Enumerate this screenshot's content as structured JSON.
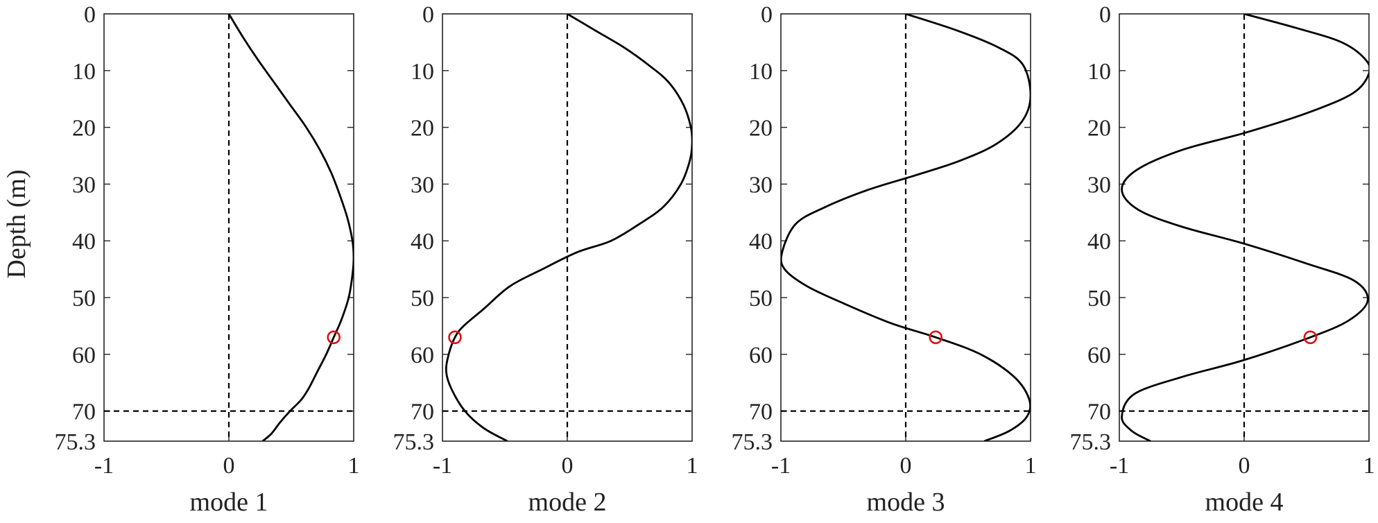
{
  "figure": {
    "ylabel": "Depth (m)",
    "colors": {
      "curve": "#000000",
      "axes": "#222222",
      "marker": "#e01010"
    }
  },
  "chart_data": [
    {
      "type": "line",
      "xlabel": "mode 1",
      "ylabel": "Depth (m)",
      "xlim": [
        -1,
        1
      ],
      "ylim": [
        0,
        75.3
      ],
      "y_reversed": true,
      "x_ticks": [
        "-1",
        "0",
        "1"
      ],
      "y_ticks": [
        "0",
        "10",
        "20",
        "30",
        "40",
        "50",
        "60",
        "70",
        "75.3"
      ],
      "reference_lines": {
        "vertical_dashed_x": 0,
        "horizontal_dashed_y": 70
      },
      "series": [
        {
          "x": [
            0,
            0.11,
            0.23,
            0.36,
            0.49,
            0.62,
            0.73,
            0.82,
            0.89,
            0.95,
            0.99,
            1.0,
            0.99,
            0.96,
            0.9,
            0.84,
            0.78,
            0.71,
            0.64,
            0.58,
            0.49,
            0.41,
            0.34,
            0.27
          ],
          "y": [
            0,
            4,
            8,
            12,
            16,
            20,
            24,
            28,
            32,
            36,
            40,
            43,
            46,
            50,
            54,
            57,
            60,
            63,
            66,
            68,
            70,
            72,
            74,
            75.3
          ]
        }
      ],
      "marker": {
        "x": 0.84,
        "y": 57,
        "shape": "open-circle"
      }
    },
    {
      "type": "line",
      "xlabel": "mode 2",
      "xlim": [
        -1,
        1
      ],
      "ylim": [
        0,
        75.3
      ],
      "y_reversed": true,
      "x_ticks": [
        "-1",
        "0",
        "1"
      ],
      "y_ticks": [
        "0",
        "10",
        "20",
        "30",
        "40",
        "50",
        "60",
        "70",
        "75.3"
      ],
      "reference_lines": {
        "vertical_dashed_x": 0,
        "horizontal_dashed_y": 70
      },
      "series": [
        {
          "x": [
            0,
            0.23,
            0.46,
            0.65,
            0.81,
            0.93,
            0.99,
            1.0,
            0.98,
            0.91,
            0.77,
            0.58,
            0.35,
            0.08,
            -0.2,
            -0.46,
            -0.67,
            -0.83,
            -0.9,
            -0.95,
            -0.97,
            -0.93,
            -0.82,
            -0.67,
            -0.48
          ],
          "y": [
            0,
            3,
            6,
            9,
            12,
            16,
            20,
            23,
            26,
            30,
            34,
            37,
            40,
            42,
            45,
            48,
            52,
            55,
            57,
            60,
            63,
            66,
            70,
            73,
            75.3
          ]
        }
      ],
      "marker": {
        "x": -0.9,
        "y": 57,
        "shape": "open-circle"
      }
    },
    {
      "type": "line",
      "xlabel": "mode 3",
      "xlim": [
        -1,
        1
      ],
      "ylim": [
        0,
        75.3
      ],
      "y_reversed": true,
      "x_ticks": [
        "-1",
        "0",
        "1"
      ],
      "y_ticks": [
        "0",
        "10",
        "20",
        "30",
        "40",
        "50",
        "60",
        "70",
        "75.3"
      ],
      "reference_lines": {
        "vertical_dashed_x": 0,
        "horizontal_dashed_y": 70
      },
      "series": [
        {
          "x": [
            0,
            0.42,
            0.75,
            0.94,
            1.0,
            0.93,
            0.72,
            0.42,
            0.07,
            -0.3,
            -0.64,
            -0.88,
            -0.99,
            -0.97,
            -0.79,
            -0.5,
            -0.12,
            0.24,
            0.6,
            0.87,
            0.99,
            0.97,
            0.83,
            0.63
          ],
          "y": [
            0,
            3,
            6,
            9,
            14.5,
            19,
            23,
            26,
            28.5,
            31,
            34,
            37,
            42,
            45,
            48,
            51,
            54.5,
            57,
            60,
            64,
            68,
            71,
            73.5,
            75.3
          ]
        }
      ],
      "marker": {
        "x": 0.24,
        "y": 57,
        "shape": "open-circle"
      }
    },
    {
      "type": "line",
      "xlabel": "mode 4",
      "xlim": [
        -1,
        1
      ],
      "ylim": [
        0,
        75.3
      ],
      "y_reversed": true,
      "x_ticks": [
        "-1",
        "0",
        "1"
      ],
      "y_ticks": [
        "0",
        "10",
        "20",
        "30",
        "40",
        "50",
        "60",
        "70",
        "75.3"
      ],
      "reference_lines": {
        "vertical_dashed_x": 0,
        "horizontal_dashed_y": 70
      },
      "series": [
        {
          "x": [
            0,
            0.42,
            0.78,
            0.97,
            1.0,
            0.87,
            0.5,
            0.0,
            -0.5,
            -0.86,
            -0.98,
            -0.85,
            -0.5,
            0.0,
            0.5,
            0.88,
            0.99,
            0.84,
            0.53,
            0.0,
            -0.5,
            -0.88,
            -0.98,
            -0.9,
            -0.75
          ],
          "y": [
            0,
            2.5,
            5,
            8,
            10.5,
            14,
            17.5,
            21,
            24,
            27.5,
            31,
            34.5,
            37.5,
            40.5,
            44,
            47,
            50.5,
            54,
            57,
            61,
            64,
            67,
            71,
            73.5,
            75.3
          ]
        }
      ],
      "marker": {
        "x": 0.53,
        "y": 57,
        "shape": "open-circle"
      }
    }
  ]
}
